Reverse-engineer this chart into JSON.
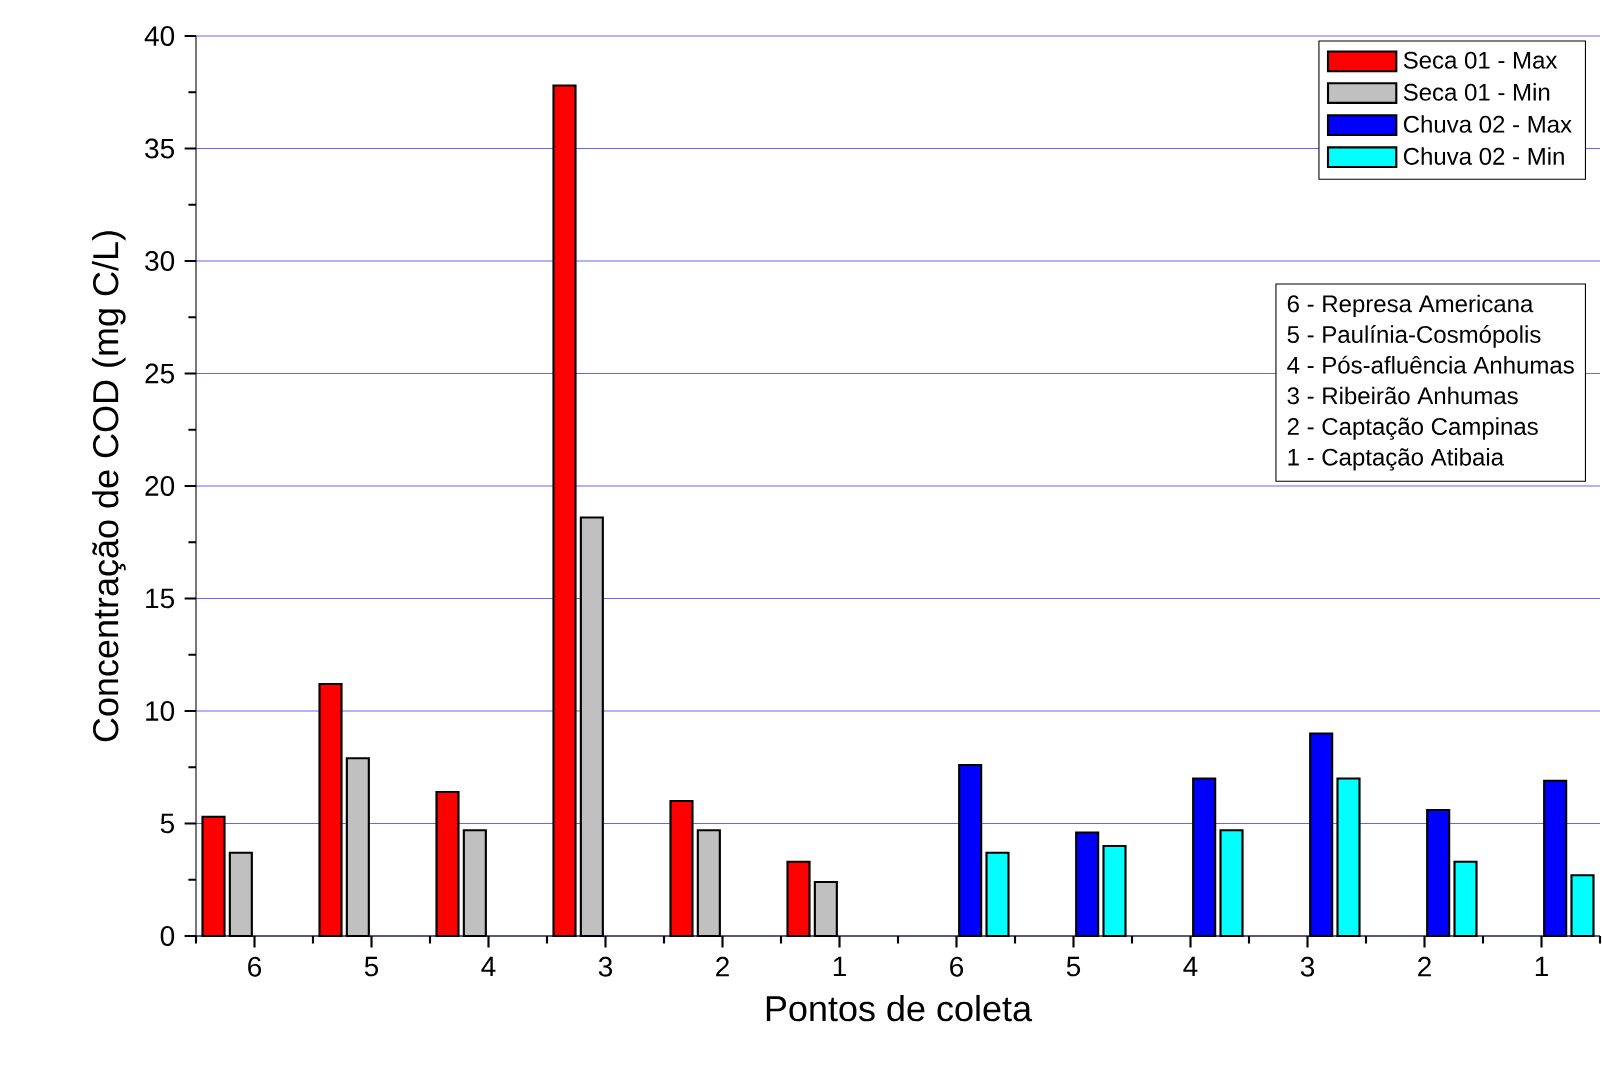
{
  "chart_data": {
    "type": "bar",
    "xlabel": "Pontos de coleta",
    "ylabel": "Concentração de COD (mg C/L)",
    "categories": [
      "6",
      "5",
      "4",
      "3",
      "2",
      "1",
      "6",
      "5",
      "4",
      "3",
      "2",
      "1"
    ],
    "series": [
      {
        "name": "Seca 01 - Max",
        "color": "#ff0000",
        "values": [
          5.3,
          11.2,
          6.4,
          37.8,
          6.0,
          3.3,
          null,
          null,
          null,
          null,
          null,
          null
        ]
      },
      {
        "name": "Seca 01 - Min",
        "color": "#c0c0c0",
        "values": [
          3.7,
          7.9,
          4.7,
          18.6,
          4.7,
          2.4,
          null,
          null,
          null,
          null,
          null,
          null
        ]
      },
      {
        "name": "Chuva 02 - Max",
        "color": "#0000ff",
        "values": [
          null,
          null,
          null,
          null,
          null,
          null,
          7.6,
          4.6,
          7.0,
          9.0,
          5.6,
          6.9
        ]
      },
      {
        "name": "Chuva 02 - Min",
        "color": "#00ffff",
        "values": [
          null,
          null,
          null,
          null,
          null,
          null,
          3.7,
          4.0,
          4.7,
          7.0,
          3.3,
          2.7
        ]
      }
    ],
    "ylim": [
      0,
      40
    ],
    "yticks": [
      0,
      5,
      10,
      15,
      20,
      25,
      30,
      35,
      40
    ],
    "grid": "y",
    "legend": "top right",
    "annotations": [
      "6 - Represa Americana",
      "5 - Paulínia-Cosmópolis",
      "4 - Pós-afluência Anhumas",
      "3 - Ribeirão Anhumas",
      "2 - Captação Campinas",
      "1 - Captação Atibaia"
    ]
  }
}
